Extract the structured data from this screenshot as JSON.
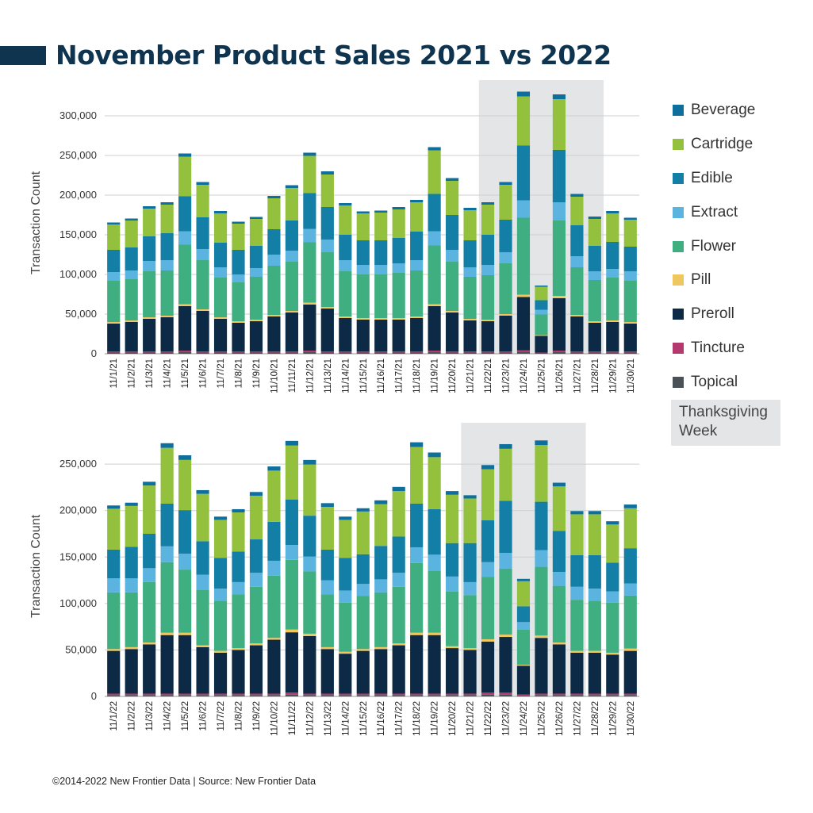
{
  "title": "November Product Sales 2021 vs 2022",
  "footer": "©2014-2022  New Frontier Data | Source: New Frontier Data",
  "legend": {
    "items": [
      {
        "name": "Beverage",
        "color": "#0f6f9c"
      },
      {
        "name": "Cartridge",
        "color": "#93c13e"
      },
      {
        "name": "Edible",
        "color": "#137ea6"
      },
      {
        "name": "Extract",
        "color": "#5bb4df"
      },
      {
        "name": "Flower",
        "color": "#3fae80"
      },
      {
        "name": "Pill",
        "color": "#f0c75e"
      },
      {
        "name": "Preroll",
        "color": "#0c2a45"
      },
      {
        "name": "Tincture",
        "color": "#b23a6e"
      },
      {
        "name": "Topical",
        "color": "#4a5258"
      }
    ],
    "highlight_label": "Thanksgiving Week",
    "highlight_color": "#e4e5e7"
  },
  "chart_data": [
    {
      "type": "bar",
      "stacked": true,
      "ylabel": "Transaction Count",
      "ylim": [
        0,
        330000
      ],
      "yticks": [
        0,
        50000,
        100000,
        150000,
        200000,
        250000,
        300000
      ],
      "highlight_range": [
        "11/22/21",
        "11/28/21"
      ],
      "categories": [
        "11/1/21",
        "11/2/21",
        "11/3/21",
        "11/4/21",
        "11/5/21",
        "11/6/21",
        "11/7/21",
        "11/8/21",
        "11/9/21",
        "11/10/21",
        "11/11/21",
        "11/12/21",
        "11/13/21",
        "11/14/21",
        "11/15/21",
        "11/16/21",
        "11/17/21",
        "11/18/21",
        "11/19/21",
        "11/20/21",
        "11/21/21",
        "11/22/21",
        "11/23/21",
        "11/24/21",
        "11/25/21",
        "11/26/21",
        "11/27/21",
        "11/28/21",
        "11/29/21",
        "11/30/21"
      ],
      "series": [
        {
          "name": "Topical",
          "values": [
            1500,
            1500,
            1500,
            1500,
            2000,
            1500,
            1500,
            1500,
            1500,
            1500,
            1500,
            2000,
            1500,
            1500,
            1500,
            1500,
            1500,
            1500,
            2000,
            1500,
            1500,
            1500,
            1500,
            2000,
            1000,
            2000,
            1500,
            1500,
            1500,
            1500
          ]
        },
        {
          "name": "Tincture",
          "values": [
            1500,
            1500,
            1500,
            1500,
            2000,
            1500,
            1500,
            1500,
            1500,
            1500,
            1500,
            2000,
            1500,
            1500,
            1500,
            1500,
            1500,
            1500,
            2000,
            1500,
            1500,
            1500,
            1500,
            2500,
            500,
            2000,
            1500,
            1500,
            1500,
            1500
          ]
        },
        {
          "name": "Preroll",
          "values": [
            35000,
            37000,
            41000,
            43000,
            56000,
            51000,
            41000,
            36000,
            38000,
            44000,
            49000,
            58000,
            54000,
            42000,
            40000,
            40000,
            40000,
            42000,
            56000,
            49000,
            39000,
            38000,
            45000,
            67000,
            21000,
            66000,
            44000,
            36000,
            37000,
            35000
          ]
        },
        {
          "name": "Pill",
          "values": [
            2000,
            2000,
            2000,
            2000,
            2500,
            2000,
            2000,
            2000,
            2000,
            2000,
            2000,
            2500,
            2000,
            2000,
            2000,
            2000,
            2000,
            2000,
            2500,
            2000,
            2000,
            2000,
            2000,
            3000,
            1000,
            3000,
            2000,
            2000,
            2000,
            2000
          ]
        },
        {
          "name": "Flower",
          "values": [
            52000,
            52000,
            58000,
            57000,
            75000,
            62000,
            50000,
            49000,
            54000,
            62000,
            62000,
            76000,
            69000,
            57000,
            55000,
            55000,
            57000,
            58000,
            74000,
            62000,
            53000,
            56000,
            64000,
            97000,
            26000,
            95000,
            60000,
            52000,
            54000,
            52000
          ]
        },
        {
          "name": "Extract",
          "values": [
            11000,
            11000,
            13000,
            13000,
            17000,
            14000,
            13000,
            10000,
            11000,
            14000,
            14000,
            17000,
            16000,
            14000,
            12000,
            12000,
            12000,
            13000,
            18000,
            15000,
            12000,
            13000,
            14000,
            22000,
            6000,
            23000,
            14000,
            11000,
            11000,
            12000
          ]
        },
        {
          "name": "Edible",
          "values": [
            28000,
            29000,
            31000,
            34000,
            44000,
            40000,
            31000,
            31000,
            28000,
            32000,
            38000,
            45000,
            41000,
            32000,
            31000,
            31000,
            32000,
            36000,
            47000,
            44000,
            34000,
            38000,
            41000,
            69000,
            12000,
            66000,
            39000,
            32000,
            34000,
            31000
          ]
        },
        {
          "name": "Cartridge",
          "values": [
            32000,
            34000,
            35000,
            36000,
            50000,
            41000,
            37000,
            33000,
            34000,
            39000,
            41000,
            47000,
            41000,
            37000,
            34000,
            35000,
            36000,
            37000,
            55000,
            43000,
            38000,
            38000,
            44000,
            62000,
            17000,
            64000,
            36000,
            34000,
            36000,
            34000
          ]
        },
        {
          "name": "Beverage",
          "values": [
            2500,
            2500,
            3000,
            3000,
            4000,
            3500,
            3000,
            2500,
            2500,
            3000,
            3500,
            4000,
            4000,
            3000,
            2500,
            2500,
            3000,
            3000,
            4000,
            3500,
            3000,
            3000,
            3500,
            6000,
            1500,
            6000,
            3500,
            3000,
            3000,
            2500
          ]
        }
      ]
    },
    {
      "type": "bar",
      "stacked": true,
      "ylabel": "Transaction Count",
      "ylim": [
        0,
        280000
      ],
      "yticks": [
        0,
        50000,
        100000,
        150000,
        200000,
        250000
      ],
      "highlight_range": [
        "11/21/22",
        "11/27/22"
      ],
      "categories": [
        "11/1/22",
        "11/2/22",
        "11/3/22",
        "11/4/22",
        "11/5/22",
        "11/6/22",
        "11/7/22",
        "11/8/22",
        "11/9/22",
        "11/10/22",
        "11/11/22",
        "11/12/22",
        "11/13/22",
        "11/14/22",
        "11/15/22",
        "11/16/22",
        "11/17/22",
        "11/18/22",
        "11/19/22",
        "11/20/22",
        "11/21/22",
        "11/22/22",
        "11/23/22",
        "11/24/22",
        "11/25/22",
        "11/26/22",
        "11/27/22",
        "11/28/22",
        "11/29/22",
        "11/30/22"
      ],
      "series": [
        {
          "name": "Topical",
          "values": [
            1500,
            1500,
            1500,
            1500,
            1500,
            1500,
            1500,
            1500,
            1500,
            1500,
            2000,
            1500,
            1500,
            1500,
            1500,
            1500,
            1500,
            1500,
            1500,
            1500,
            1500,
            2000,
            2000,
            1000,
            1500,
            1500,
            1500,
            1500,
            1500,
            1500
          ]
        },
        {
          "name": "Tincture",
          "values": [
            1500,
            1500,
            1500,
            1500,
            1500,
            1500,
            1500,
            1500,
            1500,
            1500,
            2000,
            1500,
            1500,
            1500,
            1500,
            1500,
            1500,
            1500,
            1500,
            1500,
            1500,
            2000,
            2000,
            1000,
            1500,
            1500,
            1500,
            1500,
            1500,
            1500
          ]
        },
        {
          "name": "Preroll",
          "values": [
            46000,
            48000,
            53000,
            63000,
            63000,
            50000,
            44000,
            47000,
            52000,
            58000,
            65000,
            62000,
            48000,
            43000,
            46000,
            48000,
            52000,
            63000,
            63000,
            49000,
            47000,
            55000,
            60000,
            31000,
            60000,
            53000,
            44000,
            44000,
            42000,
            46000
          ]
        },
        {
          "name": "Pill",
          "values": [
            2000,
            2000,
            2000,
            2500,
            2500,
            2000,
            2000,
            2000,
            2000,
            2000,
            3000,
            2500,
            2000,
            2000,
            2000,
            2000,
            2000,
            2500,
            2500,
            2000,
            2000,
            2500,
            2500,
            1000,
            2500,
            2000,
            2000,
            2000,
            2000,
            2500
          ]
        },
        {
          "name": "Flower",
          "values": [
            61000,
            59000,
            65000,
            76000,
            68000,
            60000,
            54000,
            58000,
            61000,
            67000,
            75000,
            67000,
            57000,
            53000,
            57000,
            59000,
            61000,
            75000,
            67000,
            59000,
            57000,
            67000,
            71000,
            38000,
            74000,
            61000,
            55000,
            54000,
            54000,
            57000
          ]
        },
        {
          "name": "Extract",
          "values": [
            15000,
            15000,
            15000,
            17000,
            17000,
            16000,
            13000,
            13000,
            15000,
            16000,
            16000,
            16000,
            15000,
            13000,
            13000,
            14000,
            15000,
            17000,
            17000,
            16000,
            14000,
            16000,
            17000,
            8000,
            18000,
            15000,
            14000,
            13000,
            12000,
            13000
          ]
        },
        {
          "name": "Edible",
          "values": [
            31000,
            34000,
            37000,
            46000,
            47000,
            36000,
            33000,
            33000,
            36000,
            42000,
            49000,
            44000,
            33000,
            35000,
            32000,
            36000,
            39000,
            47000,
            49000,
            36000,
            42000,
            45000,
            56000,
            17000,
            52000,
            44000,
            34000,
            36000,
            31000,
            38000
          ]
        },
        {
          "name": "Cartridge",
          "values": [
            44000,
            44000,
            52000,
            60000,
            54000,
            51000,
            41000,
            42000,
            47000,
            55000,
            58000,
            55000,
            46000,
            41000,
            46000,
            45000,
            49000,
            61000,
            56000,
            52000,
            48000,
            55000,
            56000,
            27000,
            61000,
            48000,
            44000,
            44000,
            41000,
            43000
          ]
        },
        {
          "name": "Beverage",
          "values": [
            3500,
            3500,
            4000,
            5000,
            5000,
            4000,
            3500,
            3500,
            4000,
            4500,
            5000,
            5000,
            4000,
            3500,
            3500,
            4000,
            4500,
            5000,
            5000,
            4000,
            3500,
            4500,
            5000,
            2500,
            5000,
            4000,
            3500,
            3500,
            3500,
            4000
          ]
        }
      ]
    }
  ]
}
